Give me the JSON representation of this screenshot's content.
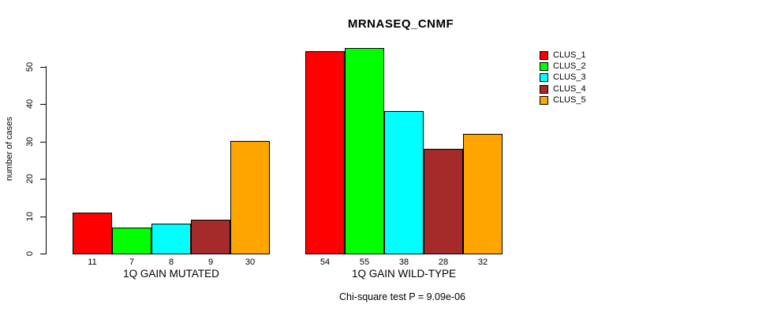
{
  "chart_data": {
    "type": "bar",
    "title": "MRNASEQ_CNMF",
    "ylabel": "number of cases",
    "ylim": [
      0,
      55
    ],
    "yticks": [
      0,
      10,
      20,
      30,
      40,
      50
    ],
    "grid": false,
    "legend_position": "right-outside",
    "series": [
      "CLUS_1",
      "CLUS_2",
      "CLUS_3",
      "CLUS_4",
      "CLUS_5"
    ],
    "series_colors": [
      "#FF0000",
      "#00FF00",
      "#00FFFF",
      "#A52A2A",
      "#FFA500"
    ],
    "categories": [
      "1Q GAIN MUTATED",
      "1Q GAIN WILD-TYPE"
    ],
    "groups": [
      {
        "label": "1Q GAIN MUTATED",
        "values": [
          11,
          7,
          8,
          9,
          30
        ]
      },
      {
        "label": "1Q GAIN WILD-TYPE",
        "values": [
          54,
          55,
          38,
          28,
          32
        ]
      }
    ],
    "bar_value_labels": true,
    "annotation": "Chi-square test P = 9.09e-06"
  }
}
